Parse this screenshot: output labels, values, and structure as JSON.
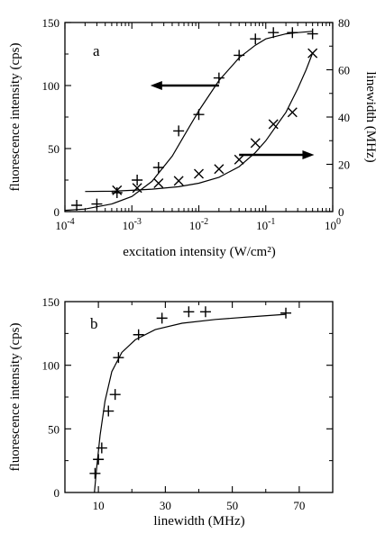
{
  "chart_data": [
    {
      "type": "scatter",
      "panel_label": "a",
      "xlabel": "excitation intensity (W/cm²)",
      "ylabel": "fluorescence intensity (cps)",
      "y2label": "linewidth (MHz)",
      "xscale": "log",
      "xlim": [
        0.0001,
        1
      ],
      "ylim": [
        0,
        150
      ],
      "y2lim": [
        0,
        80
      ],
      "x_ticks": [
        {
          "value": 0.0001,
          "base": "10",
          "exp": "-4"
        },
        {
          "value": 0.001,
          "base": "10",
          "exp": "-3"
        },
        {
          "value": 0.01,
          "base": "10",
          "exp": "-2"
        },
        {
          "value": 0.1,
          "base": "10",
          "exp": "-1"
        },
        {
          "value": 1,
          "base": "10",
          "exp": "0"
        }
      ],
      "y_ticks": [
        "0",
        "50",
        "100",
        "150"
      ],
      "y2_ticks": [
        "0",
        "20",
        "40",
        "60",
        "80"
      ],
      "grid": false,
      "series": [
        {
          "marker": "plus",
          "axis": "left",
          "x": [
            0.00015,
            0.0003,
            0.0006,
            0.0012,
            0.0025,
            0.005,
            0.01,
            0.02,
            0.04,
            0.07,
            0.13,
            0.25,
            0.5
          ],
          "y": [
            5,
            6,
            15,
            25,
            35,
            64,
            77,
            106,
            124,
            137,
            142,
            142,
            141
          ]
        },
        {
          "marker": "cross",
          "axis": "right",
          "x": [
            0.0006,
            0.0012,
            0.0025,
            0.005,
            0.01,
            0.02,
            0.04,
            0.07,
            0.13,
            0.25,
            0.5
          ],
          "y": [
            9,
            10,
            12,
            13,
            16,
            18,
            22,
            29,
            37,
            42,
            67
          ]
        },
        {
          "type": "line",
          "axis": "left",
          "x": [
            0.0001,
            0.0002,
            0.0005,
            0.001,
            0.002,
            0.004,
            0.007,
            0.01,
            0.02,
            0.04,
            0.07,
            0.1,
            0.2,
            0.3,
            0.5
          ],
          "y": [
            1,
            2,
            6,
            12,
            24,
            44,
            66,
            80,
            104,
            122,
            132,
            137,
            141,
            142,
            143
          ]
        },
        {
          "type": "line",
          "axis": "right",
          "x": [
            0.0002,
            0.0005,
            0.001,
            0.002,
            0.005,
            0.01,
            0.02,
            0.04,
            0.07,
            0.1,
            0.15,
            0.2,
            0.3,
            0.4,
            0.5
          ],
          "y": [
            8.5,
            8.6,
            9,
            9.5,
            10.5,
            12,
            14.5,
            19,
            25,
            30,
            37,
            42,
            52,
            60,
            67
          ]
        }
      ],
      "annotations": [
        {
          "type": "arrow",
          "direction": "left",
          "refers_to": "left-axis",
          "x_from": 0.02,
          "x_to": 0.0025,
          "y": 100
        },
        {
          "type": "arrow",
          "direction": "right",
          "refers_to": "right-axis",
          "x_from": 0.04,
          "x_to": 0.4,
          "y": 24
        }
      ]
    },
    {
      "type": "scatter",
      "panel_label": "b",
      "xlabel": "linewidth (MHz)",
      "ylabel": "fluorescence intensity (cps)",
      "xlim": [
        0,
        80
      ],
      "ylim": [
        0,
        150
      ],
      "x_ticks": [
        "10",
        "30",
        "50",
        "70"
      ],
      "y_ticks": [
        "0",
        "50",
        "100",
        "150"
      ],
      "grid": false,
      "series": [
        {
          "marker": "plus",
          "x": [
            9,
            10,
            11,
            13,
            15,
            16,
            22,
            29,
            37,
            42,
            66
          ],
          "y": [
            15,
            26,
            35,
            64,
            77,
            106,
            124,
            137,
            142,
            142,
            141
          ]
        },
        {
          "type": "line",
          "x": [
            8.8,
            9.5,
            10.5,
            12,
            14,
            17,
            21,
            27,
            35,
            45,
            55,
            66
          ],
          "y": [
            0,
            20,
            45,
            72,
            95,
            110,
            120,
            128,
            133,
            136,
            138,
            140
          ]
        }
      ]
    }
  ]
}
